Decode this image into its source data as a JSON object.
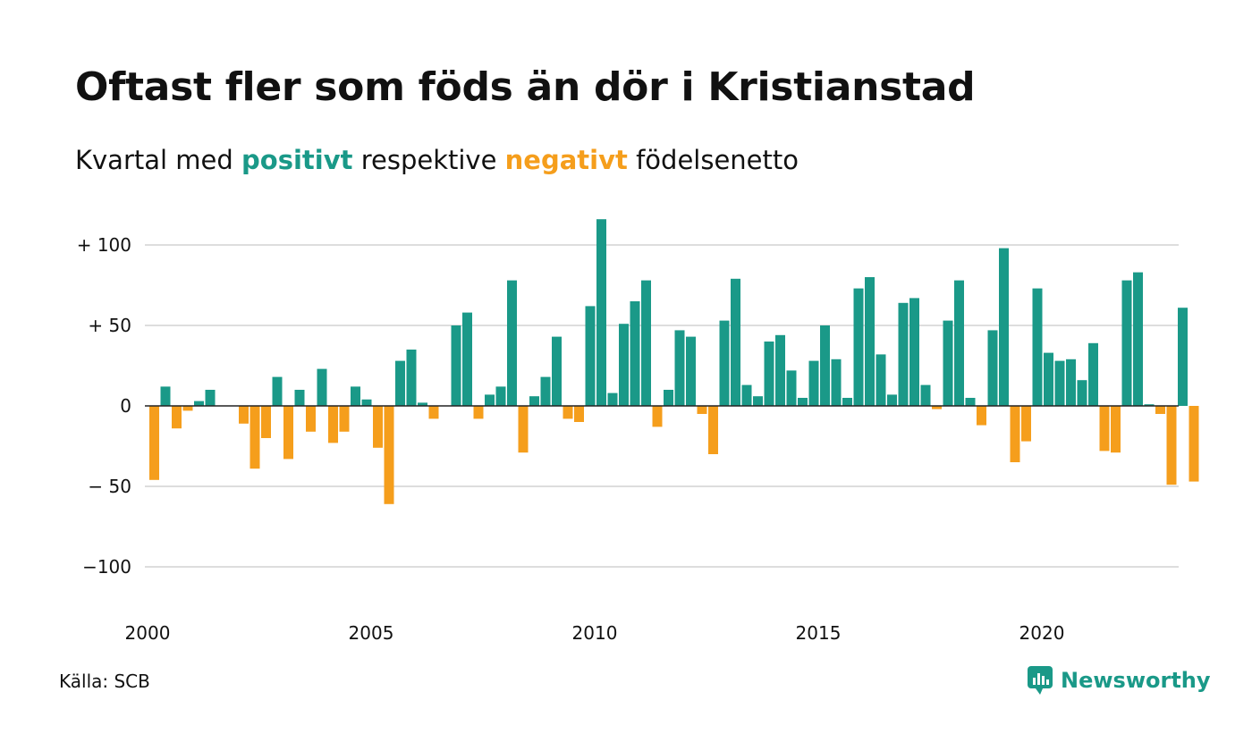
{
  "title": "Oftast fler som föds än dör i Kristianstad",
  "subtitle": {
    "prefix": "Kvartal med",
    "positive_word": "positivt",
    "middle": "respektive",
    "negative_word": "negativt",
    "suffix": "födelsenetto"
  },
  "source": "Källa: SCB",
  "brand": "Newsworthy",
  "colors": {
    "positive": "#1a9988",
    "negative": "#f59e1c",
    "grid": "#dddddd"
  },
  "chart_data": {
    "type": "bar",
    "title": "Oftast fler som föds än dör i Kristianstad",
    "subtitle": "Kvartal med positivt respektive negativt födelsenetto",
    "ylim": [
      -120,
      120
    ],
    "y_ticks": [
      {
        "value": 100,
        "label": "+ 100"
      },
      {
        "value": 50,
        "label": "+  50"
      },
      {
        "value": 0,
        "label": "0"
      },
      {
        "value": -50,
        "label": "− 50"
      },
      {
        "value": -100,
        "label": "−100"
      }
    ],
    "x_ticks": [
      {
        "value": 2000,
        "label": "2000"
      },
      {
        "value": 2005,
        "label": "2005"
      },
      {
        "value": 2010,
        "label": "2010"
      },
      {
        "value": 2015,
        "label": "2015"
      },
      {
        "value": 2020,
        "label": "2020"
      }
    ],
    "start_year": 2000,
    "grid": true,
    "values": [
      -46,
      12,
      -14,
      -3,
      3,
      10,
      0,
      0,
      -11,
      -39,
      -20,
      18,
      -33,
      10,
      -16,
      23,
      -23,
      -16,
      12,
      4,
      -26,
      -61,
      28,
      35,
      2,
      -8,
      0,
      50,
      58,
      -8,
      7,
      12,
      78,
      -29,
      6,
      18,
      43,
      -8,
      -10,
      62,
      116,
      8,
      51,
      65,
      78,
      -13,
      10,
      47,
      43,
      -5,
      -30,
      53,
      79,
      13,
      6,
      40,
      44,
      22,
      5,
      28,
      50,
      29,
      5,
      73,
      80,
      32,
      7,
      64,
      67,
      13,
      -2,
      53,
      78,
      5,
      -12,
      47,
      98,
      -35,
      -22,
      73,
      33,
      28,
      29,
      16,
      39,
      -28,
      -29,
      78,
      83,
      1,
      -5,
      -49,
      61,
      -47
    ]
  }
}
